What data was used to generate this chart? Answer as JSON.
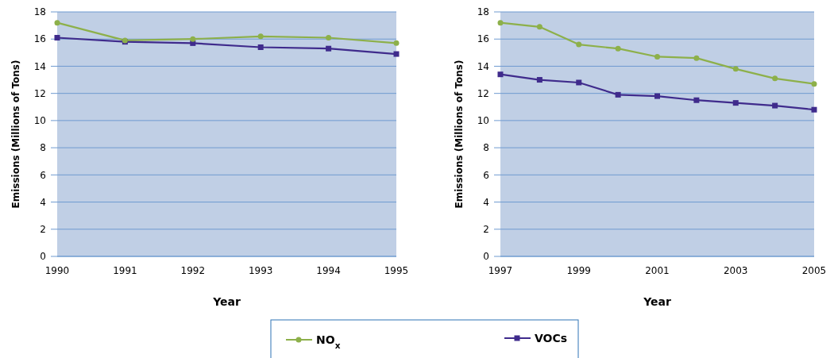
{
  "chart_data": [
    {
      "type": "line",
      "xlabel": "Year",
      "ylabel": "Emissions (Millions of Tons)",
      "x": [
        1990,
        1991,
        1992,
        1993,
        1994,
        1995
      ],
      "xlim": [
        1990,
        1995
      ],
      "xticks": [
        1990,
        1991,
        1992,
        1993,
        1994,
        1995
      ],
      "ylim": [
        0,
        18
      ],
      "yticks": [
        0,
        2,
        4,
        6,
        8,
        10,
        12,
        14,
        16,
        18
      ],
      "grid": "y",
      "legend": "bottom",
      "series": [
        {
          "name": "NO$_{x}$",
          "color": "#8db04a",
          "marker": "circle",
          "values": [
            17.2,
            15.9,
            16.0,
            16.2,
            16.1,
            15.7
          ]
        },
        {
          "name": "VOCs",
          "color": "#3f2b8c",
          "marker": "square",
          "values": [
            16.1,
            15.8,
            15.7,
            15.4,
            15.3,
            14.9
          ]
        }
      ]
    },
    {
      "type": "line",
      "xlabel": "Year",
      "ylabel": "Emissions (Millions of Tons)",
      "x": [
        1997,
        1998,
        1999,
        2000,
        2001,
        2002,
        2003,
        2004,
        2005
      ],
      "xlim": [
        1997,
        2005
      ],
      "xticks": [
        1997,
        1999,
        2001,
        2003,
        2005
      ],
      "ylim": [
        0,
        18
      ],
      "yticks": [
        0,
        2,
        4,
        6,
        8,
        10,
        12,
        14,
        16,
        18
      ],
      "grid": "y",
      "series": [
        {
          "color": "#8db04a",
          "marker": "circle",
          "values": [
            17.2,
            16.9,
            15.6,
            15.3,
            14.7,
            14.6,
            13.8,
            13.1,
            12.7
          ]
        },
        {
          "color": "#3f2b8c",
          "marker": "square",
          "values": [
            13.4,
            13.0,
            12.8,
            11.9,
            11.8,
            11.5,
            11.3,
            11.1,
            10.8
          ]
        }
      ]
    }
  ]
}
